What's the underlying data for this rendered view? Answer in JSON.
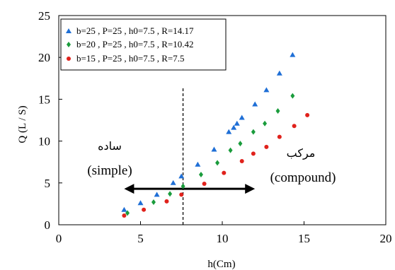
{
  "chart_data": {
    "type": "scatter",
    "title": "",
    "xlabel": "h(Cm)",
    "ylabel": "Q (L / S)",
    "xlim": [
      0,
      20
    ],
    "ylim": [
      0,
      25
    ],
    "xticks": [
      "0",
      "5",
      "10",
      "15",
      "20"
    ],
    "yticks": [
      "0",
      "5",
      "10",
      "15",
      "20",
      "25"
    ],
    "grid": false,
    "legend_position": "top-left",
    "series": [
      {
        "name": "b=25 ,  P=25 , h0=7.5 , R=14.17",
        "marker": "triangle",
        "color": "#1f6fd6",
        "points": [
          [
            4.0,
            1.8
          ],
          [
            5.0,
            2.6
          ],
          [
            6.0,
            3.6
          ],
          [
            7.0,
            5.0
          ],
          [
            7.5,
            5.8
          ],
          [
            8.5,
            7.2
          ],
          [
            9.5,
            9.0
          ],
          [
            10.4,
            11.1
          ],
          [
            10.7,
            11.6
          ],
          [
            10.9,
            12.1
          ],
          [
            11.2,
            12.8
          ],
          [
            12.0,
            14.4
          ],
          [
            12.7,
            16.1
          ],
          [
            13.5,
            18.1
          ],
          [
            14.3,
            20.3
          ]
        ]
      },
      {
        "name": "b=20 , P=25 , h0=7.5 , R=10.42",
        "marker": "diamond",
        "color": "#1a9c3c",
        "points": [
          [
            4.2,
            1.4
          ],
          [
            5.8,
            2.7
          ],
          [
            6.8,
            3.7
          ],
          [
            7.6,
            4.6
          ],
          [
            8.7,
            6.0
          ],
          [
            9.7,
            7.4
          ],
          [
            10.5,
            8.9
          ],
          [
            11.1,
            9.7
          ],
          [
            11.9,
            11.1
          ],
          [
            12.6,
            12.1
          ],
          [
            13.4,
            13.6
          ],
          [
            14.3,
            15.4
          ]
        ]
      },
      {
        "name": "b=15 , P=25 , h0=7.5 , R=7.5",
        "marker": "circle",
        "color": "#e0221c",
        "points": [
          [
            4.0,
            1.1
          ],
          [
            5.2,
            1.8
          ],
          [
            6.6,
            2.8
          ],
          [
            7.5,
            3.6
          ],
          [
            8.9,
            4.9
          ],
          [
            10.1,
            6.2
          ],
          [
            11.2,
            7.6
          ],
          [
            11.9,
            8.5
          ],
          [
            12.7,
            9.3
          ],
          [
            13.5,
            10.5
          ],
          [
            14.4,
            11.8
          ],
          [
            15.2,
            13.1
          ]
        ]
      }
    ],
    "vertical_line": {
      "x": 7.6,
      "style": "dashed"
    },
    "arrow": {
      "x_from": 4.0,
      "x_to": 12.0,
      "y": 4.3,
      "style": "double-headed"
    },
    "annotations": {
      "simple_fa": "ساده",
      "simple_en": "(simple)",
      "compound_fa": "مرکب",
      "compound_en": "(compound)"
    }
  }
}
